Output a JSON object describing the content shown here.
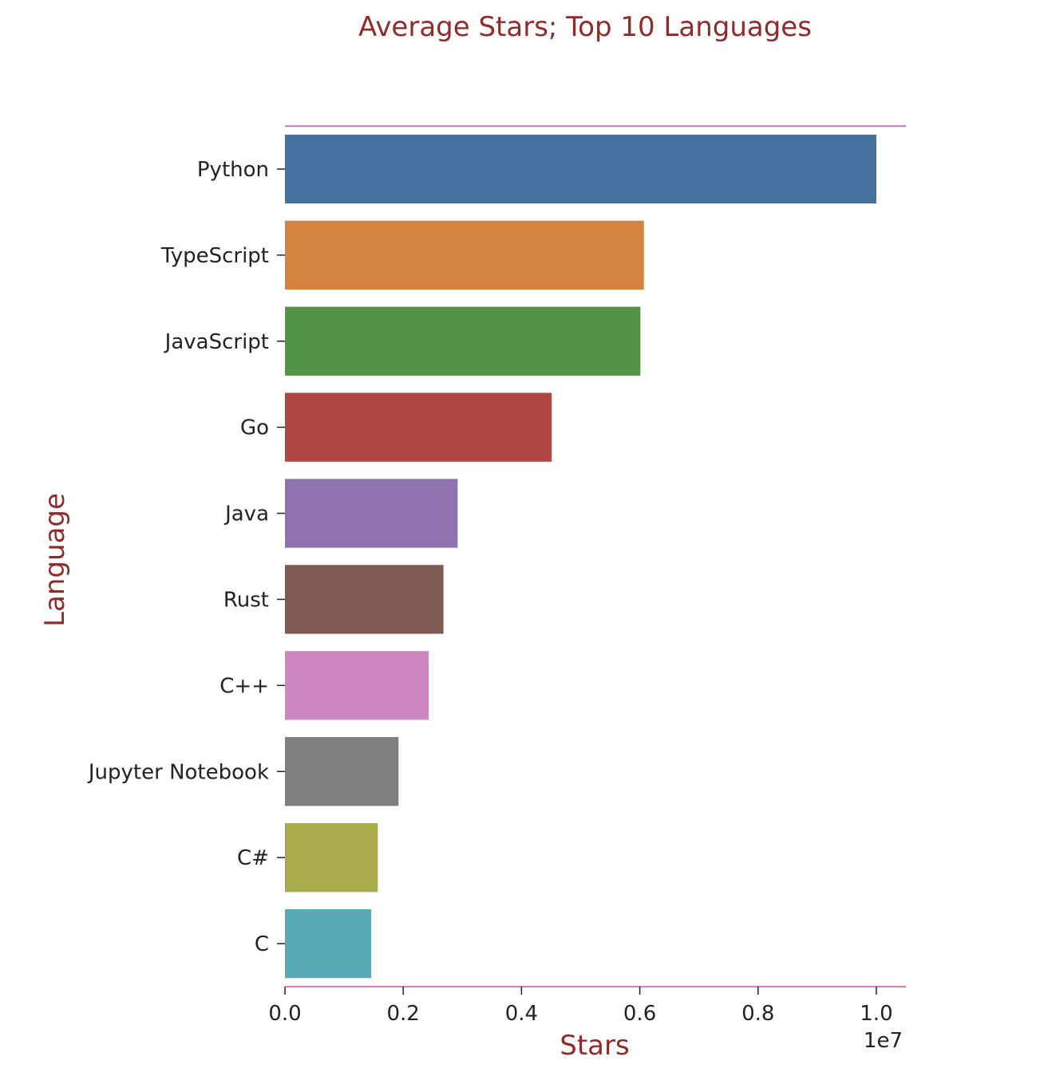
{
  "chart_data": {
    "type": "bar",
    "orientation": "horizontal",
    "title": "Average Stars; Top 10 Languages",
    "xlabel": "Stars",
    "ylabel": "Language",
    "offset_label": "1e7",
    "xlim": [
      0,
      1.05
    ],
    "x_ticks": [
      "0.0",
      "0.2",
      "0.4",
      "0.6",
      "0.8",
      "1.0"
    ],
    "x_tick_values": [
      0.0,
      0.2,
      0.4,
      0.6,
      0.8,
      1.0
    ],
    "categories": [
      "Python",
      "TypeScript",
      "JavaScript",
      "Go",
      "Java",
      "Rust",
      "C++",
      "Jupyter Notebook",
      "C#",
      "C"
    ],
    "values": [
      1.0,
      0.607,
      0.601,
      0.451,
      0.292,
      0.268,
      0.243,
      0.192,
      0.157,
      0.146
    ],
    "value_scale": 10000000,
    "colors": [
      "#4472a0",
      "#d4843f",
      "#529345",
      "#b04641",
      "#8f73ae",
      "#7e5b52",
      "#cc87bf",
      "#7f7f7f",
      "#a8ab4a",
      "#57aab6"
    ],
    "grid": false,
    "legend": "none",
    "spine_color": "#e377c2",
    "label_color": "#8e2c2c"
  }
}
